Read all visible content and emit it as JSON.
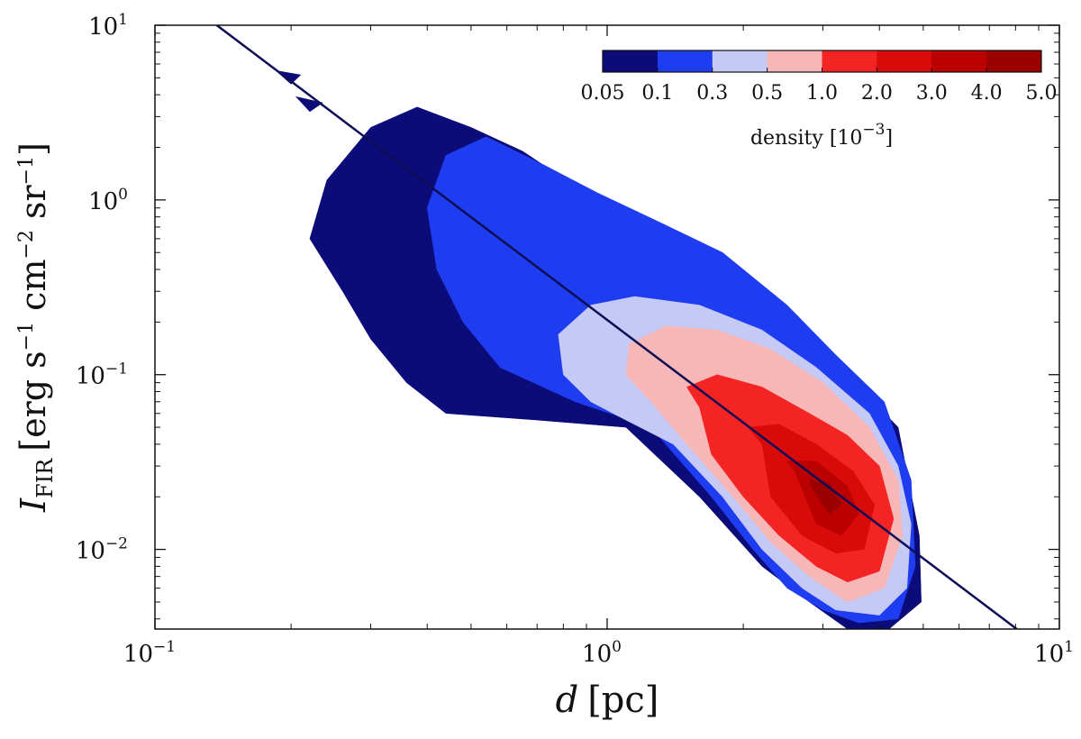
{
  "chart_data": {
    "type": "heatmap",
    "title": "",
    "xscale": "log",
    "yscale": "log",
    "xlim": [
      0.1,
      10
    ],
    "ylim": [
      0.0035,
      10
    ],
    "xlabel_symbol": "d",
    "xlabel_unit": "[pc]",
    "ylabel_symbol": "I",
    "ylabel_subscript": "FIR",
    "ylabel_unit_parts": {
      "open": "[erg s",
      "exp1": "−1",
      "mid": " cm",
      "exp2": "−2",
      "mid2": " sr",
      "exp3": "−1",
      "close": "]"
    },
    "x_ticks": [
      {
        "value": 0.1,
        "base": "10",
        "exp": "−1"
      },
      {
        "value": 1,
        "base": "10",
        "exp": "0"
      },
      {
        "value": 10,
        "base": "10",
        "exp": "1"
      }
    ],
    "y_ticks": [
      {
        "value": 0.01,
        "base": "10",
        "exp": "−2"
      },
      {
        "value": 0.1,
        "base": "10",
        "exp": "−1"
      },
      {
        "value": 1,
        "base": "10",
        "exp": "0"
      },
      {
        "value": 10,
        "base": "10",
        "exp": "1"
      }
    ],
    "fit_line": {
      "points": [
        [
          0.137,
          10
        ],
        [
          8.05,
          0.0035
        ]
      ],
      "color": "#0d0d55"
    },
    "colorbar": {
      "label_text": "density [10",
      "label_exp": "−3",
      "label_close": "]",
      "levels": [
        "0.05",
        "0.1",
        "0.3",
        "0.5",
        "1.0",
        "2.0",
        "3.0",
        "4.0",
        "5.0"
      ],
      "colors": [
        "#0b0b7a",
        "#1f3df0",
        "#c5c9f5",
        "#f7b7b7",
        "#f42424",
        "#d90a0a",
        "#bb0000",
        "#9a0000"
      ]
    },
    "contours": [
      {
        "level": "0.05",
        "color": "#0b0b7a",
        "polygons": [
          [
            [
              0.44,
              0.06
            ],
            [
              0.36,
              0.09
            ],
            [
              0.3,
              0.16
            ],
            [
              0.26,
              0.3
            ],
            [
              0.22,
              0.6
            ],
            [
              0.24,
              1.3
            ],
            [
              0.3,
              2.6
            ],
            [
              0.38,
              3.4
            ],
            [
              0.5,
              2.6
            ],
            [
              0.65,
              1.9
            ],
            [
              0.85,
              1.2
            ],
            [
              1.2,
              0.75
            ],
            [
              1.8,
              0.45
            ],
            [
              2.6,
              0.2
            ],
            [
              3.4,
              0.1
            ],
            [
              4.4,
              0.05
            ],
            [
              4.9,
              0.012
            ],
            [
              4.95,
              0.005
            ],
            [
              4.2,
              0.0035
            ],
            [
              3.4,
              0.0035
            ],
            [
              2.8,
              0.005
            ],
            [
              2.2,
              0.008
            ],
            [
              1.6,
              0.02
            ],
            [
              1.1,
              0.05
            ],
            [
              0.7,
              0.055
            ]
          ],
          [
            [
              0.185,
              5.5
            ],
            [
              0.2,
              4.6
            ],
            [
              0.21,
              5.2
            ]
          ],
          [
            [
              0.205,
              3.9
            ],
            [
              0.22,
              3.2
            ],
            [
              0.235,
              3.6
            ]
          ],
          [
            [
              0.47,
              0.18
            ],
            [
              0.5,
              0.15
            ],
            [
              0.52,
              0.17
            ]
          ],
          [
            [
              0.28,
              0.22
            ],
            [
              0.3,
              0.17
            ],
            [
              0.32,
              0.2
            ]
          ]
        ]
      },
      {
        "level": "0.1",
        "color": "#1f3df0",
        "polygons": [
          [
            [
              0.58,
              0.11
            ],
            [
              0.48,
              0.2
            ],
            [
              0.42,
              0.4
            ],
            [
              0.4,
              0.9
            ],
            [
              0.44,
              1.8
            ],
            [
              0.54,
              2.3
            ],
            [
              0.72,
              1.6
            ],
            [
              0.95,
              1.1
            ],
            [
              1.3,
              0.75
            ],
            [
              1.8,
              0.5
            ],
            [
              2.5,
              0.25
            ],
            [
              3.2,
              0.13
            ],
            [
              4.1,
              0.07
            ],
            [
              4.7,
              0.025
            ],
            [
              4.8,
              0.008
            ],
            [
              4.4,
              0.004
            ],
            [
              3.6,
              0.0038
            ],
            [
              3.0,
              0.0045
            ],
            [
              2.5,
              0.006
            ],
            [
              2.1,
              0.01
            ],
            [
              1.7,
              0.02
            ],
            [
              1.25,
              0.05
            ],
            [
              0.85,
              0.07
            ]
          ]
        ]
      },
      {
        "level": "0.3",
        "color": "#c5c9f5",
        "polygons": [
          [
            [
              0.92,
              0.07
            ],
            [
              0.8,
              0.1
            ],
            [
              0.78,
              0.17
            ],
            [
              0.92,
              0.25
            ],
            [
              1.15,
              0.28
            ],
            [
              1.6,
              0.25
            ],
            [
              2.2,
              0.18
            ],
            [
              2.9,
              0.11
            ],
            [
              3.8,
              0.06
            ],
            [
              4.4,
              0.03
            ],
            [
              4.7,
              0.014
            ],
            [
              4.6,
              0.006
            ],
            [
              4.0,
              0.0042
            ],
            [
              3.2,
              0.0045
            ],
            [
              2.7,
              0.006
            ],
            [
              2.2,
              0.01
            ],
            [
              1.8,
              0.02
            ],
            [
              1.4,
              0.04
            ],
            [
              1.1,
              0.055
            ]
          ]
        ]
      },
      {
        "level": "0.5",
        "color": "#f7b7b7",
        "polygons": [
          [
            [
              1.25,
              0.07
            ],
            [
              1.1,
              0.1
            ],
            [
              1.12,
              0.15
            ],
            [
              1.35,
              0.19
            ],
            [
              1.75,
              0.18
            ],
            [
              2.3,
              0.14
            ],
            [
              3.0,
              0.09
            ],
            [
              3.8,
              0.05
            ],
            [
              4.4,
              0.025
            ],
            [
              4.5,
              0.012
            ],
            [
              4.1,
              0.006
            ],
            [
              3.4,
              0.005
            ],
            [
              2.8,
              0.007
            ],
            [
              2.3,
              0.011
            ],
            [
              1.9,
              0.02
            ],
            [
              1.5,
              0.04
            ]
          ]
        ]
      },
      {
        "level": "1.0",
        "color": "#f42424",
        "polygons": [
          [
            [
              1.6,
              0.065
            ],
            [
              1.5,
              0.085
            ],
            [
              1.75,
              0.1
            ],
            [
              2.2,
              0.085
            ],
            [
              2.8,
              0.06
            ],
            [
              3.4,
              0.045
            ],
            [
              4.0,
              0.03
            ],
            [
              4.3,
              0.015
            ],
            [
              4.0,
              0.0075
            ],
            [
              3.4,
              0.0065
            ],
            [
              2.9,
              0.008
            ],
            [
              2.4,
              0.012
            ],
            [
              2.0,
              0.02
            ],
            [
              1.7,
              0.035
            ]
          ]
        ]
      },
      {
        "level": "2.0",
        "color": "#d90a0a",
        "polygons": [
          [
            [
              2.2,
              0.04
            ],
            [
              2.05,
              0.05
            ],
            [
              2.4,
              0.052
            ],
            [
              2.9,
              0.04
            ],
            [
              3.5,
              0.028
            ],
            [
              3.9,
              0.018
            ],
            [
              3.7,
              0.01
            ],
            [
              3.2,
              0.0095
            ],
            [
              2.7,
              0.012
            ],
            [
              2.3,
              0.02
            ]
          ]
        ]
      },
      {
        "level": "3.0",
        "color": "#bb0000",
        "polygons": [
          [
            [
              2.6,
              0.028
            ],
            [
              2.5,
              0.032
            ],
            [
              2.9,
              0.032
            ],
            [
              3.4,
              0.023
            ],
            [
              3.6,
              0.016
            ],
            [
              3.3,
              0.012
            ],
            [
              2.9,
              0.014
            ]
          ]
        ]
      },
      {
        "level": "4.0",
        "color": "#9a0000",
        "polygons": [
          [
            [
              2.85,
              0.022
            ],
            [
              2.8,
              0.025
            ],
            [
              3.1,
              0.024
            ],
            [
              3.3,
              0.018
            ],
            [
              3.1,
              0.016
            ]
          ]
        ]
      }
    ]
  }
}
